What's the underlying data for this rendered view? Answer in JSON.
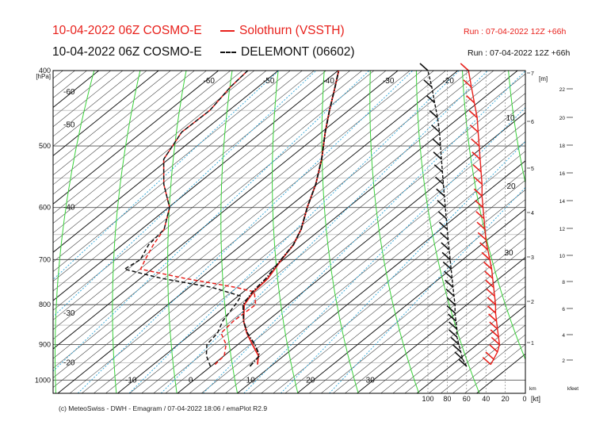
{
  "header": {
    "line1_left": "10-04-2022 06Z COSMO-E",
    "line1_series": "Solothurn (VSSTH)",
    "line1_run": "Run : 07-04-2022 12Z +66h",
    "line2_left": "10-04-2022 06Z COSMO-E",
    "line2_series": "DELEMONT (06602)",
    "line2_run": "Run : 07-04-2022 12Z +66h"
  },
  "footer": "(c) MeteoSwiss - DWH - Emagram / 07-04-2022  18:06 / emaPlot R2.9",
  "colors": {
    "red": "#e8211c",
    "black": "#111111",
    "dry_adiabat": "#3bd23b",
    "mixing_ratio": "#2ea6d8",
    "isotherm": "#222222"
  },
  "chart_data": {
    "type": "line",
    "diagram": "emagram",
    "pressure_axis_label": "[hPa]",
    "pressure_ticks": [
      "400",
      "500",
      "600",
      "700",
      "800",
      "900",
      "1000"
    ],
    "temp_ticks_bottom": [
      "-10",
      "0",
      "10",
      "20",
      "30"
    ],
    "temp_ticks_top": [
      "-60",
      "-50",
      "-40",
      "-30",
      "-20"
    ],
    "temp_ticks_left": [
      "-60",
      "-50",
      "-40",
      "-30",
      "-20"
    ],
    "theta_labels": [
      "10",
      "20",
      "30"
    ],
    "km_label": "[m]",
    "km_ticks": [
      "7",
      "6",
      "5",
      "4",
      "3",
      "2",
      "1"
    ],
    "km_unit": "km",
    "kfeet_ticks": [
      "22",
      "20",
      "18",
      "16",
      "14",
      "12",
      "10",
      "8",
      "6",
      "4",
      "2"
    ],
    "kfeet_unit": "kfeet",
    "wind_ticks": [
      "100",
      "80",
      "60",
      "40",
      "20",
      "0"
    ],
    "wind_unit": "[kt]",
    "series": [
      {
        "name": "Solothurn (VSSTH)",
        "variable": "temperature",
        "p": [
          955,
          930,
          900,
          870,
          840,
          800,
          770,
          740,
          700,
          670,
          640,
          600,
          560,
          520,
          480,
          450,
          420,
          400
        ],
        "t": [
          7.4,
          5.7,
          2.4,
          -0.9,
          -3.9,
          -7.2,
          -8.3,
          -8.7,
          -10.3,
          -11.4,
          -13.3,
          -16.8,
          -20.2,
          -24.4,
          -29.4,
          -33.2,
          -37.1,
          -39.9
        ]
      },
      {
        "name": "Solothurn (VSSTH)",
        "variable": "dewpoint",
        "p": [
          955,
          930,
          900,
          870,
          840,
          800,
          770,
          760,
          740,
          720,
          700,
          670,
          640,
          600,
          560,
          520,
          480,
          450,
          420,
          400
        ],
        "t": [
          0.3,
          0.0,
          -2.0,
          -5.2,
          -5.6,
          -5.3,
          -8.2,
          -12.2,
          -22.6,
          -31.9,
          -33.1,
          -34.8,
          -36.2,
          -39.8,
          -45.6,
          -50.8,
          -53.4,
          -53.2,
          -54.6,
          -55.1
        ]
      },
      {
        "name": "DELEMONT (06602)",
        "variable": "temperature",
        "p": [
          960,
          930,
          900,
          870,
          840,
          800,
          770,
          740,
          700,
          670,
          640,
          600,
          560,
          520,
          480,
          450,
          420,
          400
        ],
        "t": [
          6.5,
          5.9,
          2.8,
          -0.8,
          -3.9,
          -7.4,
          -8.5,
          -9.0,
          -10.4,
          -11.4,
          -13.3,
          -16.8,
          -20.2,
          -24.4,
          -29.4,
          -33.2,
          -37.1,
          -39.9
        ]
      },
      {
        "name": "DELEMONT (06602)",
        "variable": "dewpoint",
        "p": [
          960,
          930,
          900,
          870,
          840,
          800,
          780,
          760,
          740,
          720,
          700,
          670,
          640,
          600,
          560,
          520,
          480,
          450,
          420,
          400
        ],
        "t": [
          -0.1,
          -3.0,
          -5.2,
          -5.8,
          -7.4,
          -8.7,
          -9.5,
          -16.2,
          -26.5,
          -34.6,
          -33.9,
          -35.6,
          -36.2,
          -39.8,
          -45.6,
          -50.8,
          -53.4,
          -53.2,
          -54.6,
          -55.1
        ]
      }
    ],
    "wind_profiles": [
      {
        "name": "Solothurn (VSSTH)",
        "variable": "wind_speed_kt",
        "p": [
          955,
          940,
          920,
          900,
          880,
          860,
          840,
          820,
          800,
          780,
          760,
          740,
          720,
          700,
          680,
          660,
          640,
          620,
          600,
          580,
          560,
          540,
          520,
          500,
          480,
          460,
          440,
          420,
          400
        ],
        "v": [
          35,
          32,
          28,
          26,
          27,
          28,
          29,
          30,
          30,
          31,
          32,
          33,
          34,
          36,
          38,
          40,
          41,
          42,
          43,
          44,
          44,
          45,
          46,
          47,
          48,
          49,
          52,
          55,
          58
        ]
      },
      {
        "name": "DELEMONT (06602)",
        "variable": "wind_speed_kt",
        "p": [
          960,
          940,
          920,
          900,
          880,
          860,
          840,
          820,
          800,
          780,
          760,
          740,
          720,
          700,
          680,
          660,
          640,
          620,
          600,
          580,
          560,
          540,
          520,
          500,
          480,
          460,
          440,
          420,
          400
        ],
        "v": [
          60,
          64,
          66,
          68,
          70,
          70,
          71,
          72,
          72,
          73,
          74,
          75,
          76,
          77,
          78,
          79,
          80,
          81,
          82,
          83,
          84,
          85,
          86,
          87,
          88,
          90,
          93,
          96,
          100
        ]
      }
    ]
  }
}
